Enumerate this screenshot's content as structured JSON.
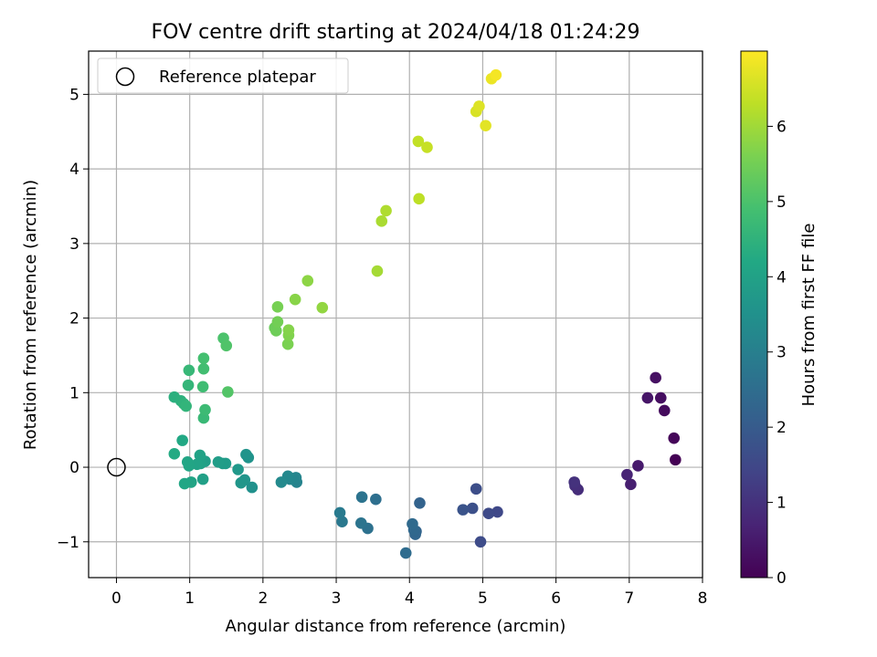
{
  "chart_data": {
    "type": "scatter",
    "title": "FOV centre drift starting at 2024/04/18 01:24:29",
    "xlabel": "Angular distance from reference (arcmin)",
    "ylabel": "Rotation from reference (arcmin)",
    "colorbar_label": "Hours from first FF file",
    "xlim": [
      -0.38,
      8.0
    ],
    "ylim": [
      -1.48,
      5.58
    ],
    "x_ticks": [
      0,
      1,
      2,
      3,
      4,
      5,
      6,
      7,
      8
    ],
    "y_ticks": [
      -1,
      0,
      1,
      2,
      3,
      4,
      5
    ],
    "colorbar_range": [
      0,
      7
    ],
    "colorbar_ticks": [
      0,
      1,
      2,
      3,
      4,
      5,
      6
    ],
    "colormap": "viridis",
    "grid": true,
    "legend_position": "top-left",
    "legend": {
      "label": "Reference platepar"
    },
    "reference_point": {
      "x": 0,
      "y": 0
    },
    "points": [
      {
        "x": 7.63,
        "y": 0.1,
        "c": 0.0
      },
      {
        "x": 7.61,
        "y": 0.39,
        "c": 0.1
      },
      {
        "x": 7.48,
        "y": 0.76,
        "c": 0.2
      },
      {
        "x": 7.43,
        "y": 0.93,
        "c": 0.25
      },
      {
        "x": 7.36,
        "y": 1.2,
        "c": 0.3
      },
      {
        "x": 7.25,
        "y": 0.93,
        "c": 0.4
      },
      {
        "x": 7.12,
        "y": 0.02,
        "c": 0.5
      },
      {
        "x": 7.02,
        "y": -0.23,
        "c": 0.6
      },
      {
        "x": 6.97,
        "y": -0.1,
        "c": 0.7
      },
      {
        "x": 6.3,
        "y": -0.3,
        "c": 0.9
      },
      {
        "x": 6.26,
        "y": -0.25,
        "c": 0.95
      },
      {
        "x": 6.25,
        "y": -0.2,
        "c": 1.0
      },
      {
        "x": 5.2,
        "y": -0.6,
        "c": 1.5
      },
      {
        "x": 5.08,
        "y": -0.62,
        "c": 1.55
      },
      {
        "x": 4.97,
        "y": -1.0,
        "c": 1.6
      },
      {
        "x": 4.91,
        "y": -0.29,
        "c": 1.65
      },
      {
        "x": 4.86,
        "y": -0.55,
        "c": 1.7
      },
      {
        "x": 4.73,
        "y": -0.57,
        "c": 1.8
      },
      {
        "x": 4.14,
        "y": -0.48,
        "c": 2.2
      },
      {
        "x": 4.09,
        "y": -0.86,
        "c": 2.25
      },
      {
        "x": 4.08,
        "y": -0.9,
        "c": 2.3
      },
      {
        "x": 4.06,
        "y": -0.84,
        "c": 2.35
      },
      {
        "x": 4.04,
        "y": -0.76,
        "c": 2.4
      },
      {
        "x": 3.95,
        "y": -1.15,
        "c": 2.45
      },
      {
        "x": 3.54,
        "y": -0.43,
        "c": 2.55
      },
      {
        "x": 3.43,
        "y": -0.82,
        "c": 2.6
      },
      {
        "x": 3.35,
        "y": -0.4,
        "c": 2.65
      },
      {
        "x": 3.34,
        "y": -0.75,
        "c": 2.7
      },
      {
        "x": 3.08,
        "y": -0.73,
        "c": 2.8
      },
      {
        "x": 3.05,
        "y": -0.61,
        "c": 2.85
      },
      {
        "x": 2.46,
        "y": -0.2,
        "c": 3.1
      },
      {
        "x": 2.45,
        "y": -0.14,
        "c": 3.15
      },
      {
        "x": 2.37,
        "y": -0.16,
        "c": 3.2
      },
      {
        "x": 2.34,
        "y": -0.12,
        "c": 3.25
      },
      {
        "x": 2.25,
        "y": -0.2,
        "c": 3.3
      },
      {
        "x": 1.85,
        "y": -0.27,
        "c": 3.5
      },
      {
        "x": 1.8,
        "y": 0.13,
        "c": 3.55
      },
      {
        "x": 1.77,
        "y": 0.17,
        "c": 3.6
      },
      {
        "x": 1.75,
        "y": -0.17,
        "c": 3.62
      },
      {
        "x": 1.7,
        "y": -0.21,
        "c": 3.65
      },
      {
        "x": 1.66,
        "y": -0.03,
        "c": 3.7
      },
      {
        "x": 1.49,
        "y": 0.05,
        "c": 3.8
      },
      {
        "x": 1.45,
        "y": 0.05,
        "c": 3.82
      },
      {
        "x": 1.39,
        "y": 0.07,
        "c": 3.85
      },
      {
        "x": 1.21,
        "y": 0.08,
        "c": 3.9
      },
      {
        "x": 1.18,
        "y": -0.16,
        "c": 3.95
      },
      {
        "x": 1.15,
        "y": 0.05,
        "c": 4.0
      },
      {
        "x": 1.14,
        "y": 0.16,
        "c": 4.02
      },
      {
        "x": 1.1,
        "y": 0.04,
        "c": 4.05
      },
      {
        "x": 1.02,
        "y": -0.2,
        "c": 4.08
      },
      {
        "x": 0.99,
        "y": 0.02,
        "c": 4.1
      },
      {
        "x": 0.97,
        "y": 0.07,
        "c": 4.12
      },
      {
        "x": 0.93,
        "y": -0.22,
        "c": 4.15
      },
      {
        "x": 0.9,
        "y": 0.36,
        "c": 4.2
      },
      {
        "x": 0.79,
        "y": 0.18,
        "c": 4.25
      },
      {
        "x": 0.79,
        "y": 0.94,
        "c": 4.4
      },
      {
        "x": 0.88,
        "y": 0.89,
        "c": 4.45
      },
      {
        "x": 0.92,
        "y": 0.85,
        "c": 4.5
      },
      {
        "x": 0.95,
        "y": 0.82,
        "c": 4.55
      },
      {
        "x": 0.98,
        "y": 1.1,
        "c": 4.6
      },
      {
        "x": 0.99,
        "y": 1.3,
        "c": 4.65
      },
      {
        "x": 1.19,
        "y": 0.66,
        "c": 4.7
      },
      {
        "x": 1.21,
        "y": 0.77,
        "c": 4.75
      },
      {
        "x": 1.18,
        "y": 1.08,
        "c": 4.8
      },
      {
        "x": 1.19,
        "y": 1.32,
        "c": 4.85
      },
      {
        "x": 1.19,
        "y": 1.46,
        "c": 4.9
      },
      {
        "x": 1.46,
        "y": 1.73,
        "c": 5.0
      },
      {
        "x": 1.5,
        "y": 1.63,
        "c": 5.05
      },
      {
        "x": 1.52,
        "y": 1.01,
        "c": 5.1
      },
      {
        "x": 2.16,
        "y": 1.87,
        "c": 5.4
      },
      {
        "x": 2.18,
        "y": 1.83,
        "c": 5.45
      },
      {
        "x": 2.2,
        "y": 1.95,
        "c": 5.5
      },
      {
        "x": 2.2,
        "y": 2.15,
        "c": 5.55
      },
      {
        "x": 2.34,
        "y": 1.65,
        "c": 5.6
      },
      {
        "x": 2.35,
        "y": 1.77,
        "c": 5.65
      },
      {
        "x": 2.35,
        "y": 1.84,
        "c": 5.7
      },
      {
        "x": 2.44,
        "y": 2.25,
        "c": 5.75
      },
      {
        "x": 2.61,
        "y": 2.5,
        "c": 5.8
      },
      {
        "x": 2.81,
        "y": 2.14,
        "c": 5.85
      },
      {
        "x": 3.56,
        "y": 2.63,
        "c": 6.05
      },
      {
        "x": 3.62,
        "y": 3.3,
        "c": 6.1
      },
      {
        "x": 3.68,
        "y": 3.44,
        "c": 6.15
      },
      {
        "x": 4.13,
        "y": 3.6,
        "c": 6.3
      },
      {
        "x": 4.12,
        "y": 4.37,
        "c": 6.35
      },
      {
        "x": 4.24,
        "y": 4.29,
        "c": 6.4
      },
      {
        "x": 4.91,
        "y": 4.77,
        "c": 6.6
      },
      {
        "x": 4.95,
        "y": 4.84,
        "c": 6.65
      },
      {
        "x": 5.04,
        "y": 4.58,
        "c": 6.7
      },
      {
        "x": 5.12,
        "y": 5.21,
        "c": 6.8
      },
      {
        "x": 5.18,
        "y": 5.26,
        "c": 6.9
      }
    ]
  }
}
